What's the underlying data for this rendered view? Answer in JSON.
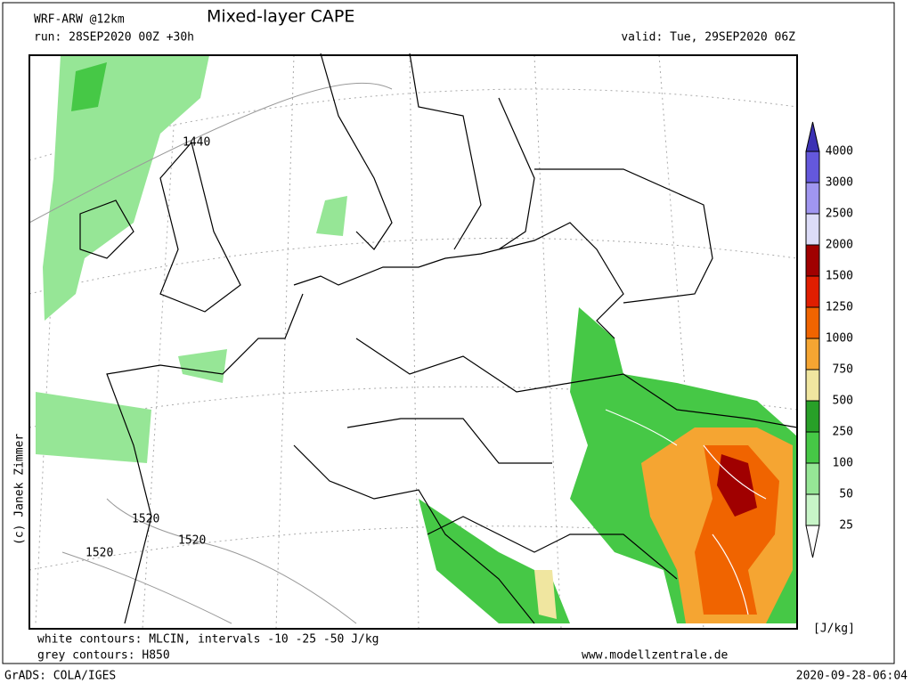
{
  "header": {
    "model": "WRF-ARW @12km",
    "title": "Mixed-layer CAPE",
    "run": "run: 28SEP2020 00Z +30h",
    "valid": "valid: Tue, 29SEP2020 06Z"
  },
  "credit": "(c) Janek Zimmer",
  "contour_labels": [
    "1440",
    "1520",
    "1520",
    "1520"
  ],
  "legend": {
    "ticks": [
      4000,
      3000,
      2500,
      2000,
      1500,
      1250,
      1000,
      750,
      500,
      250,
      100,
      50,
      25
    ],
    "colors": [
      "#3c32b4",
      "#6458dc",
      "#a096f0",
      "#dcdcf8",
      "#a00000",
      "#e01e00",
      "#f06400",
      "#f5a532",
      "#f0e6a0",
      "#28a028",
      "#46c846",
      "#96e696",
      "#c8f5c8",
      "#ffffff"
    ],
    "unit": "[J/kg]"
  },
  "footer": {
    "line1": "white contours: MLCIN, intervals -10 -25 -50 J/kg",
    "line2": "grey contours: H850",
    "site": "www.modellzentrale.de",
    "grads": "GrADS: COLA/IGES",
    "timestamp": "2020-09-28-06:04"
  }
}
